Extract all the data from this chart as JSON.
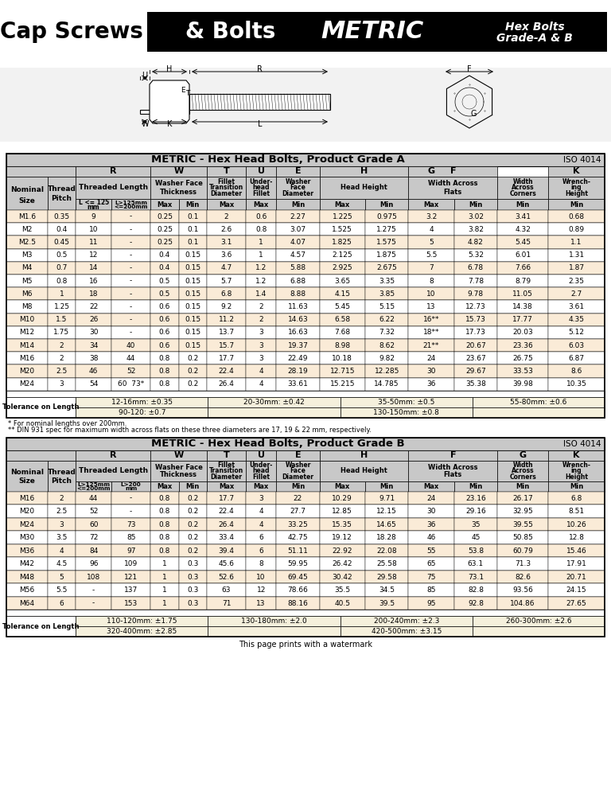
{
  "grade_a_title": "METRIC - Hex Head Bolts, Product Grade A",
  "grade_b_title": "METRIC - Hex Head Bolts, Product Grade B",
  "iso": "ISO 4014",
  "grade_a_data": [
    [
      "M1.6",
      "0.35",
      "9",
      "-",
      "0.25",
      "0.1",
      "2",
      "0.6",
      "2.27",
      "1.225",
      "0.975",
      "3.2",
      "3.02",
      "3.41",
      "0.68"
    ],
    [
      "M2",
      "0.4",
      "10",
      "-",
      "0.25",
      "0.1",
      "2.6",
      "0.8",
      "3.07",
      "1.525",
      "1.275",
      "4",
      "3.82",
      "4.32",
      "0.89"
    ],
    [
      "M2.5",
      "0.45",
      "11",
      "-",
      "0.25",
      "0.1",
      "3.1",
      "1",
      "4.07",
      "1.825",
      "1.575",
      "5",
      "4.82",
      "5.45",
      "1.1"
    ],
    [
      "M3",
      "0.5",
      "12",
      "-",
      "0.4",
      "0.15",
      "3.6",
      "1",
      "4.57",
      "2.125",
      "1.875",
      "5.5",
      "5.32",
      "6.01",
      "1.31"
    ],
    [
      "M4",
      "0.7",
      "14",
      "-",
      "0.4",
      "0.15",
      "4.7",
      "1.2",
      "5.88",
      "2.925",
      "2.675",
      "7",
      "6.78",
      "7.66",
      "1.87"
    ],
    [
      "M5",
      "0.8",
      "16",
      "-",
      "0.5",
      "0.15",
      "5.7",
      "1.2",
      "6.88",
      "3.65",
      "3.35",
      "8",
      "7.78",
      "8.79",
      "2.35"
    ],
    [
      "M6",
      "1",
      "18",
      "-",
      "0.5",
      "0.15",
      "6.8",
      "1.4",
      "8.88",
      "4.15",
      "3.85",
      "10",
      "9.78",
      "11.05",
      "2.7"
    ],
    [
      "M8",
      "1.25",
      "22",
      "-",
      "0.6",
      "0.15",
      "9.2",
      "2",
      "11.63",
      "5.45",
      "5.15",
      "13",
      "12.73",
      "14.38",
      "3.61"
    ],
    [
      "M10",
      "1.5",
      "26",
      "-",
      "0.6",
      "0.15",
      "11.2",
      "2",
      "14.63",
      "6.58",
      "6.22",
      "16**",
      "15.73",
      "17.77",
      "4.35"
    ],
    [
      "M12",
      "1.75",
      "30",
      "-",
      "0.6",
      "0.15",
      "13.7",
      "3",
      "16.63",
      "7.68",
      "7.32",
      "18**",
      "17.73",
      "20.03",
      "5.12"
    ],
    [
      "M14",
      "2",
      "34",
      "40",
      "0.6",
      "0.15",
      "15.7",
      "3",
      "19.37",
      "8.98",
      "8.62",
      "21**",
      "20.67",
      "23.36",
      "6.03"
    ],
    [
      "M16",
      "2",
      "38",
      "44",
      "0.8",
      "0.2",
      "17.7",
      "3",
      "22.49",
      "10.18",
      "9.82",
      "24",
      "23.67",
      "26.75",
      "6.87"
    ],
    [
      "M20",
      "2.5",
      "46",
      "52",
      "0.8",
      "0.2",
      "22.4",
      "4",
      "28.19",
      "12.715",
      "12.285",
      "30",
      "29.67",
      "33.53",
      "8.6"
    ],
    [
      "M24",
      "3",
      "54",
      "60  73*",
      "0.8",
      "0.2",
      "26.4",
      "4",
      "33.61",
      "15.215",
      "14.785",
      "36",
      "35.38",
      "39.98",
      "10.35"
    ]
  ],
  "grade_a_tolerance": [
    [
      "12-16mm: ±0.35",
      "20-30mm: ±0.42",
      "35-50mm: ±0.5",
      "55-80mm: ±0.6"
    ],
    [
      "90-120: ±0.7",
      "",
      "130-150mm: ±0.8",
      ""
    ]
  ],
  "grade_b_data": [
    [
      "M16",
      "2",
      "44",
      "-",
      "0.8",
      "0.2",
      "17.7",
      "3",
      "22",
      "10.29",
      "9.71",
      "24",
      "23.16",
      "26.17",
      "6.8"
    ],
    [
      "M20",
      "2.5",
      "52",
      "-",
      "0.8",
      "0.2",
      "22.4",
      "4",
      "27.7",
      "12.85",
      "12.15",
      "30",
      "29.16",
      "32.95",
      "8.51"
    ],
    [
      "M24",
      "3",
      "60",
      "73",
      "0.8",
      "0.2",
      "26.4",
      "4",
      "33.25",
      "15.35",
      "14.65",
      "36",
      "35",
      "39.55",
      "10.26"
    ],
    [
      "M30",
      "3.5",
      "72",
      "85",
      "0.8",
      "0.2",
      "33.4",
      "6",
      "42.75",
      "19.12",
      "18.28",
      "46",
      "45",
      "50.85",
      "12.8"
    ],
    [
      "M36",
      "4",
      "84",
      "97",
      "0.8",
      "0.2",
      "39.4",
      "6",
      "51.11",
      "22.92",
      "22.08",
      "55",
      "53.8",
      "60.79",
      "15.46"
    ],
    [
      "M42",
      "4.5",
      "96",
      "109",
      "1",
      "0.3",
      "45.6",
      "8",
      "59.95",
      "26.42",
      "25.58",
      "65",
      "63.1",
      "71.3",
      "17.91"
    ],
    [
      "M48",
      "5",
      "108",
      "121",
      "1",
      "0.3",
      "52.6",
      "10",
      "69.45",
      "30.42",
      "29.58",
      "75",
      "73.1",
      "82.6",
      "20.71"
    ],
    [
      "M56",
      "5.5",
      "-",
      "137",
      "1",
      "0.3",
      "63",
      "12",
      "78.66",
      "35.5",
      "34.5",
      "85",
      "82.8",
      "93.56",
      "24.15"
    ],
    [
      "M64",
      "6",
      "-",
      "153",
      "1",
      "0.3",
      "71",
      "13",
      "88.16",
      "40.5",
      "39.5",
      "95",
      "92.8",
      "104.86",
      "27.65"
    ]
  ],
  "grade_b_tolerance": [
    [
      "110-120mm: ±1.75",
      "130-180mm: ±2.0",
      "200-240mm: ±2.3",
      "260-300mm: ±2.6"
    ],
    [
      "320-400mm: ±2.85",
      "",
      "420-500mm: ±3.15",
      ""
    ]
  ],
  "footnote1": "* For nominal lengths over 200mm.",
  "footnote2": "** DIN 931 spec for maximum width across flats on these three diameters are 17, 19 & 22 mm, respectively.",
  "watermark": "This page prints with a watermark"
}
